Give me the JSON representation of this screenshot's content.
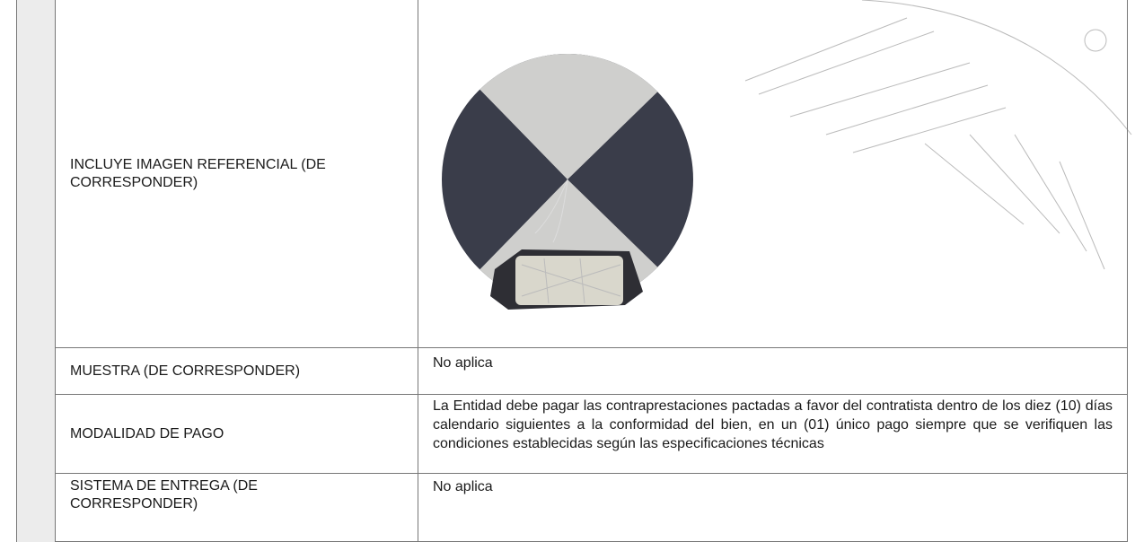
{
  "table": {
    "rows": [
      [
        "INCLUYE IMAGEN REFERENCIAL (DE CORRESPONDER)",
        null
      ],
      [
        "MUESTRA (DE CORRESPONDER)",
        "No aplica"
      ],
      [
        "MODALIDAD DE PAGO",
        "La Entidad debe pagar las contraprestaciones pactadas a favor del contratista dentro de los diez (10) días calendario siguientes a la conformidad del bien, en un (01) único pago siempre que se verifiquen las condiciones establecidas según las especificaciones técnicas"
      ],
      [
        "SISTEMA DE ENTREGA (DE CORRESPONDER)",
        "No aplica"
      ]
    ]
  }
}
